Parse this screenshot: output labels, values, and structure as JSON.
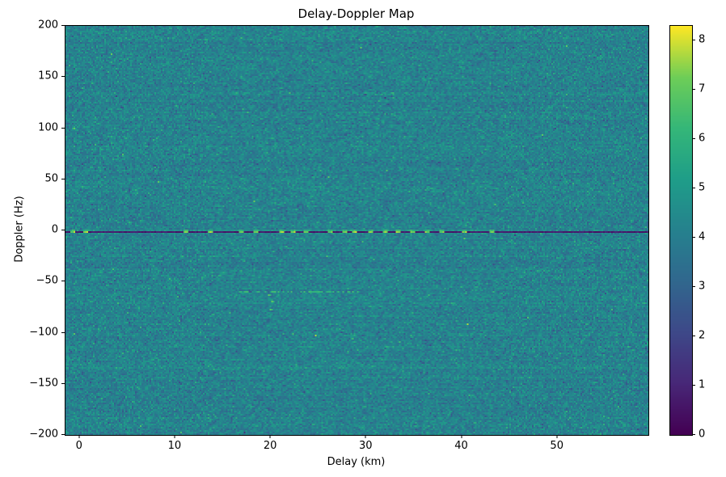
{
  "chart_data": {
    "type": "heatmap",
    "title": "Delay-Doppler Map",
    "xlabel": "Delay (km)",
    "ylabel": "Doppler (Hz)",
    "x_range": [
      -1.5,
      59.5
    ],
    "y_range": [
      -200,
      200
    ],
    "x_ticks": [
      0,
      10,
      20,
      30,
      40,
      50
    ],
    "y_ticks": [
      -200,
      -150,
      -100,
      -50,
      0,
      50,
      100,
      150,
      200
    ],
    "grid": false,
    "legend_position": "colorbar-right",
    "colormap": "viridis",
    "colormap_stops": [
      "#440154",
      "#482878",
      "#3e4989",
      "#31688e",
      "#26828e",
      "#1f9e89",
      "#35b779",
      "#6ece58",
      "#fde725"
    ],
    "color_range": [
      0,
      8.3
    ],
    "colorbar_ticks": [
      0,
      1,
      2,
      3,
      4,
      5,
      6,
      7,
      8
    ],
    "noise": {
      "seed": 42,
      "mean": 4.15,
      "stddev": 0.55,
      "row_stddev": 0.12,
      "speckle_prob": 0.0025,
      "speckle_boost": 1.4
    },
    "features": {
      "zero_doppler_line": {
        "doppler": 0,
        "value": 0.35,
        "description": "dark near-zero line across all delays at 0 Hz"
      },
      "zero_doppler_bright_spots": {
        "doppler": 0,
        "value": 8.0,
        "delays": [
          -0.8,
          0.5,
          11,
          13.5,
          16.8,
          18.3,
          21,
          22.3,
          23.6,
          26.2,
          27.6,
          28.7,
          30.4,
          31.8,
          33.2,
          34.8,
          36.3,
          37.8,
          40.2,
          43.1
        ]
      },
      "zero_doppler_halo": {
        "delay_range": [
          -1.5,
          46
        ],
        "boost": 0.3
      },
      "secondary_streak": {
        "doppler": -59,
        "delay_range": [
          16.5,
          29
        ],
        "value": 5.9,
        "dotted": true
      },
      "descending_specks": {
        "value": 6.7,
        "points": [
          [
            19.6,
            -63
          ],
          [
            20.1,
            -69
          ],
          [
            19.9,
            -76
          ]
        ]
      },
      "edge_specks": {
        "value": 6.9,
        "points": [
          [
            -0.6,
            100
          ],
          [
            -0.6,
            -100
          ]
        ]
      }
    }
  }
}
